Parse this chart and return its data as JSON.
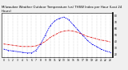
{
  "title": "Milwaukee Weather Outdoor Temperature (vs) THSW Index per Hour (Last 24 Hours)",
  "bg_color": "#f0f0f0",
  "plot_bg": "#ffffff",
  "grid_color": "#888888",
  "hours": [
    0,
    1,
    2,
    3,
    4,
    5,
    6,
    7,
    8,
    9,
    10,
    11,
    12,
    13,
    14,
    15,
    16,
    17,
    18,
    19,
    20,
    21,
    22,
    23
  ],
  "temp_line": [
    36,
    35,
    34,
    33,
    32,
    32,
    32,
    33,
    36,
    40,
    46,
    50,
    54,
    56,
    57,
    56,
    54,
    51,
    48,
    46,
    44,
    42,
    41,
    39
  ],
  "thsw_line": [
    28,
    26,
    25,
    24,
    23,
    22,
    22,
    26,
    36,
    50,
    64,
    72,
    76,
    78,
    74,
    66,
    58,
    50,
    42,
    36,
    32,
    28,
    25,
    23
  ],
  "temp_color": "#dd0000",
  "thsw_color": "#0000ee",
  "ylim": [
    15,
    85
  ],
  "yticks": [
    20,
    30,
    40,
    50,
    60,
    70,
    80
  ],
  "ytick_labels": [
    "20",
    "30",
    "40",
    "50",
    "60",
    "70",
    "80"
  ],
  "title_fontsize": 2.8,
  "tick_fontsize": 2.2,
  "line_width": 0.6,
  "right_spine_color": "#000000",
  "left_spine_color": "#000000"
}
